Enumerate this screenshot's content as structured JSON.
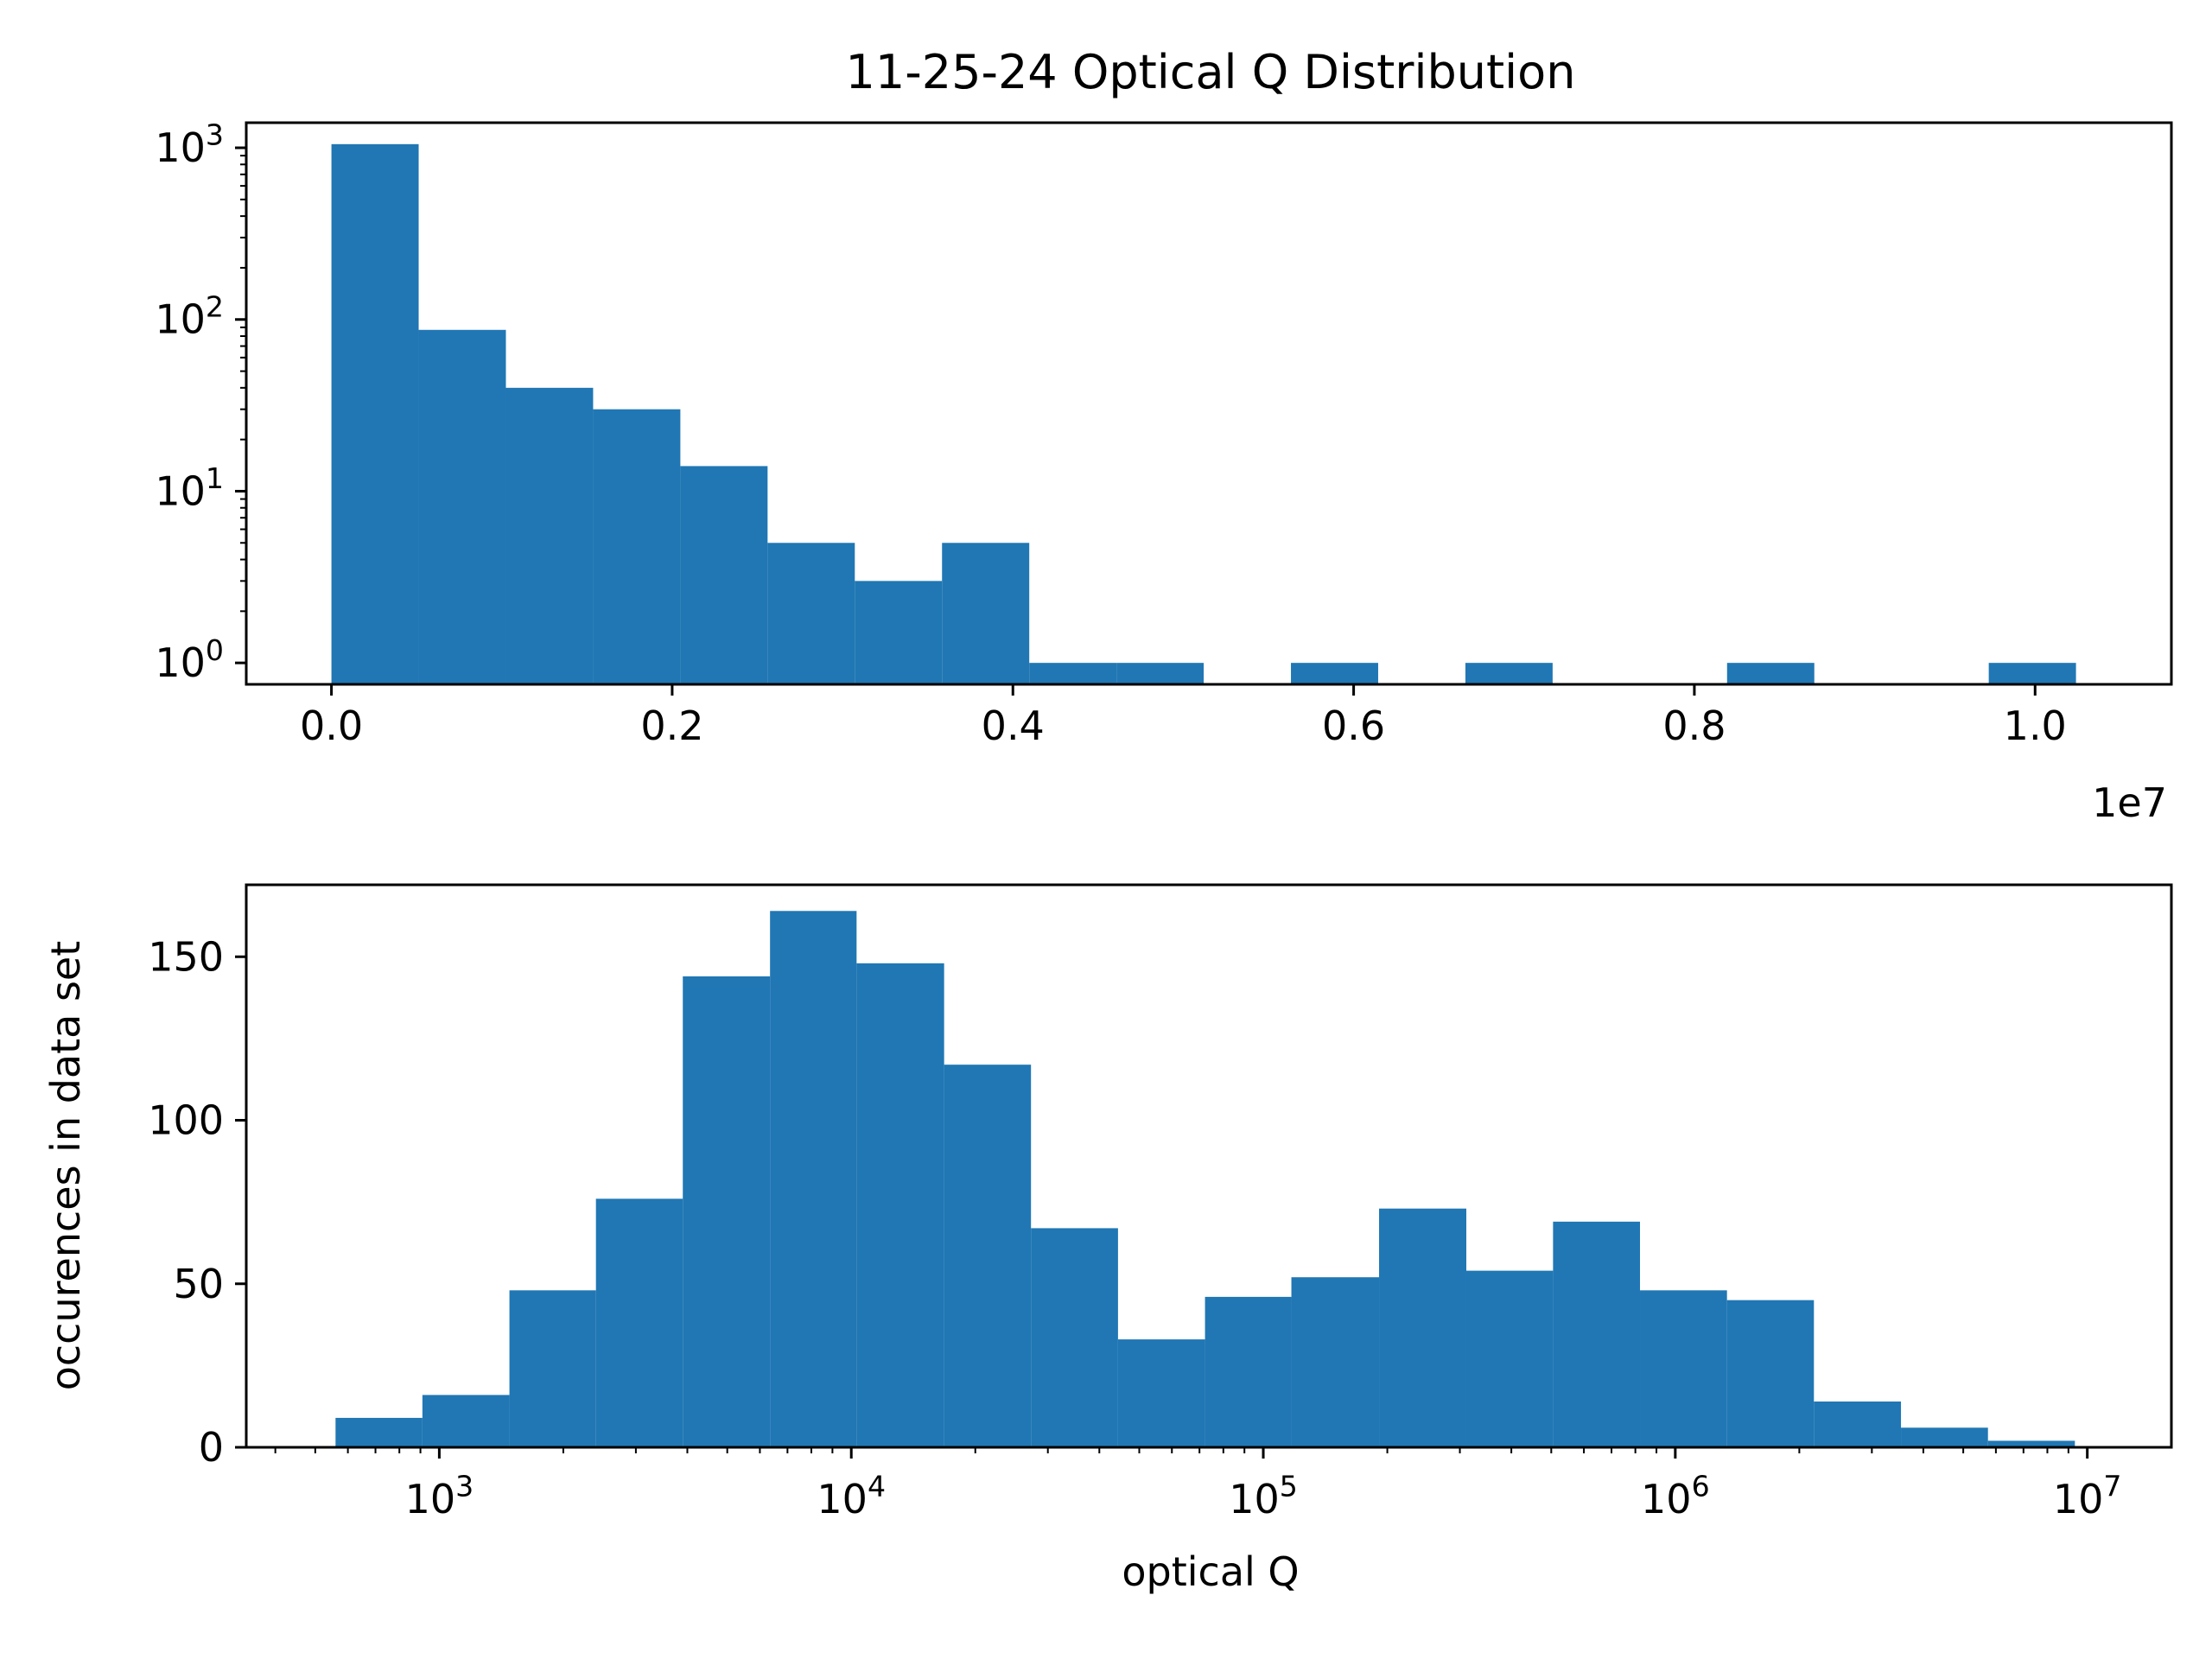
{
  "figure_title": "11-25-24 Optical Q Distribution",
  "colors": {
    "bar": "#2077b4",
    "axes": "#000000",
    "background": "#ffffff"
  },
  "chart_data": [
    {
      "type": "bar",
      "title": "11-25-24 Optical Q Distribution",
      "yscale": "log",
      "xscale": "linear",
      "xlabel": "",
      "ylabel": "",
      "x_offset_label": "1e7",
      "xlim": [
        -500000,
        10800000
      ],
      "ylim": [
        0.75,
        1400
      ],
      "xticks": [
        0,
        2000000,
        4000000,
        6000000,
        8000000,
        10000000
      ],
      "xtick_labels": [
        "0.0",
        "0.2",
        "0.4",
        "0.6",
        "0.8",
        "1.0"
      ],
      "yticks": [
        1,
        10,
        100,
        1000
      ],
      "ytick_labels": [
        {
          "base": "10",
          "exp": "0"
        },
        {
          "base": "10",
          "exp": "1"
        },
        {
          "base": "10",
          "exp": "2"
        },
        {
          "base": "10",
          "exp": "3"
        }
      ],
      "bin_edges": [
        0,
        512000,
        1024000,
        1536000,
        2048000,
        2560000,
        3072000,
        3584000,
        4096000,
        4608000,
        5120000,
        5632000,
        6144000,
        6656000,
        7168000,
        7680000,
        8192000,
        8704000,
        9216000,
        9728000,
        10240000
      ],
      "values": [
        1050,
        87,
        40,
        30,
        14,
        5,
        3,
        5,
        1,
        1,
        0,
        1,
        0,
        1,
        0,
        0,
        1,
        0,
        0,
        1
      ]
    },
    {
      "type": "bar",
      "xscale": "log",
      "yscale": "linear",
      "xlabel": "optical Q",
      "ylabel": "occurences in data set",
      "xlim": [
        340,
        16000000
      ],
      "ylim": [
        0,
        172
      ],
      "xticks": [
        1000,
        10000,
        100000,
        1000000,
        10000000
      ],
      "xtick_labels": [
        {
          "base": "10",
          "exp": "3"
        },
        {
          "base": "10",
          "exp": "4"
        },
        {
          "base": "10",
          "exp": "5"
        },
        {
          "base": "10",
          "exp": "6"
        },
        {
          "base": "10",
          "exp": "7"
        }
      ],
      "yticks": [
        0,
        50,
        100,
        150
      ],
      "ytick_labels": [
        "0",
        "50",
        "100",
        "150"
      ],
      "bin_edges": [
        560,
        910,
        1480,
        2400,
        3900,
        6350,
        10300,
        16800,
        27300,
        44400,
        72200,
        117000,
        191000,
        311000,
        505000,
        821000,
        1335000,
        2170000,
        3530000,
        5740000,
        9330000
      ],
      "values": [
        9,
        16,
        48,
        76,
        144,
        164,
        148,
        117,
        67,
        33,
        46,
        52,
        73,
        54,
        69,
        48,
        45,
        14,
        6,
        2
      ]
    }
  ]
}
